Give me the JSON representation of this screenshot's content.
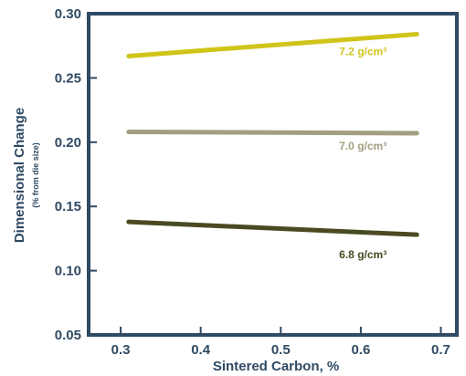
{
  "chart_data": {
    "type": "line",
    "title": "",
    "xlabel": "Sintered Carbon, %",
    "ylabel": "Dimensional Change",
    "ylabel_sub": "(% from die size)",
    "xlim": [
      0.26,
      0.72
    ],
    "ylim": [
      0.05,
      0.3
    ],
    "xticks": [
      "0.3",
      "0.4",
      "0.5",
      "0.6",
      "0.7"
    ],
    "yticks": [
      "0.05",
      "0.10",
      "0.15",
      "0.20",
      "0.25",
      "0.30"
    ],
    "grid": false,
    "series": [
      {
        "name": "7.2 g/cm³",
        "x": [
          0.31,
          0.67
        ],
        "y": [
          0.267,
          0.284
        ],
        "color": "#d0c41a"
      },
      {
        "name": "7.0 g/cm³",
        "x": [
          0.31,
          0.67
        ],
        "y": [
          0.208,
          0.207
        ],
        "color": "#a39e7e"
      },
      {
        "name": "6.8 g/cm³",
        "x": [
          0.31,
          0.67
        ],
        "y": [
          0.138,
          0.128
        ],
        "color": "#4a4a22"
      }
    ]
  }
}
